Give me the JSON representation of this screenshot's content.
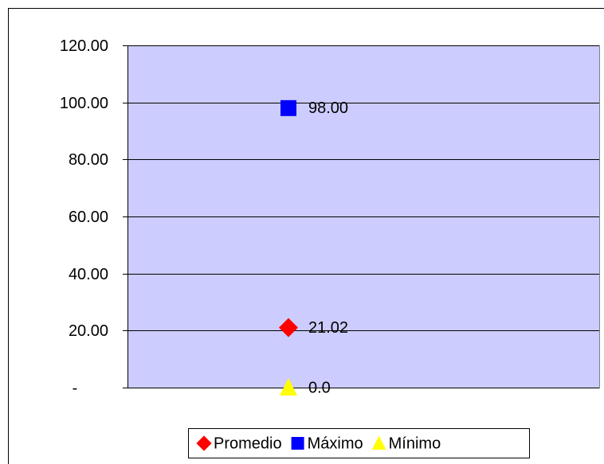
{
  "chart_data": {
    "type": "line",
    "categories": [
      null
    ],
    "series": [
      {
        "name": "Promedio",
        "color": "#ff0000",
        "marker": "diamond",
        "values": [
          21.02
        ],
        "value_labels": [
          "21.02"
        ]
      },
      {
        "name": "Máximo",
        "color": "#0000ff",
        "marker": "square",
        "values": [
          98
        ],
        "value_labels": [
          "98.00"
        ]
      },
      {
        "name": "Mínimo",
        "color": "#ffff00",
        "marker": "triangle",
        "values": [
          0
        ],
        "value_labels": [
          "0.0"
        ]
      }
    ],
    "ylim": [
      0,
      120
    ],
    "yticks": [
      {
        "value": 0,
        "label": "-"
      },
      {
        "value": 20,
        "label": "20.00"
      },
      {
        "value": 40,
        "label": "40.00"
      },
      {
        "value": 60,
        "label": "60.00"
      },
      {
        "value": 80,
        "label": "80.00"
      },
      {
        "value": 100,
        "label": "100.00"
      },
      {
        "value": 120,
        "label": "120.00"
      }
    ],
    "grid": true,
    "plot_background": "#ccccff",
    "legend": "bottom"
  }
}
